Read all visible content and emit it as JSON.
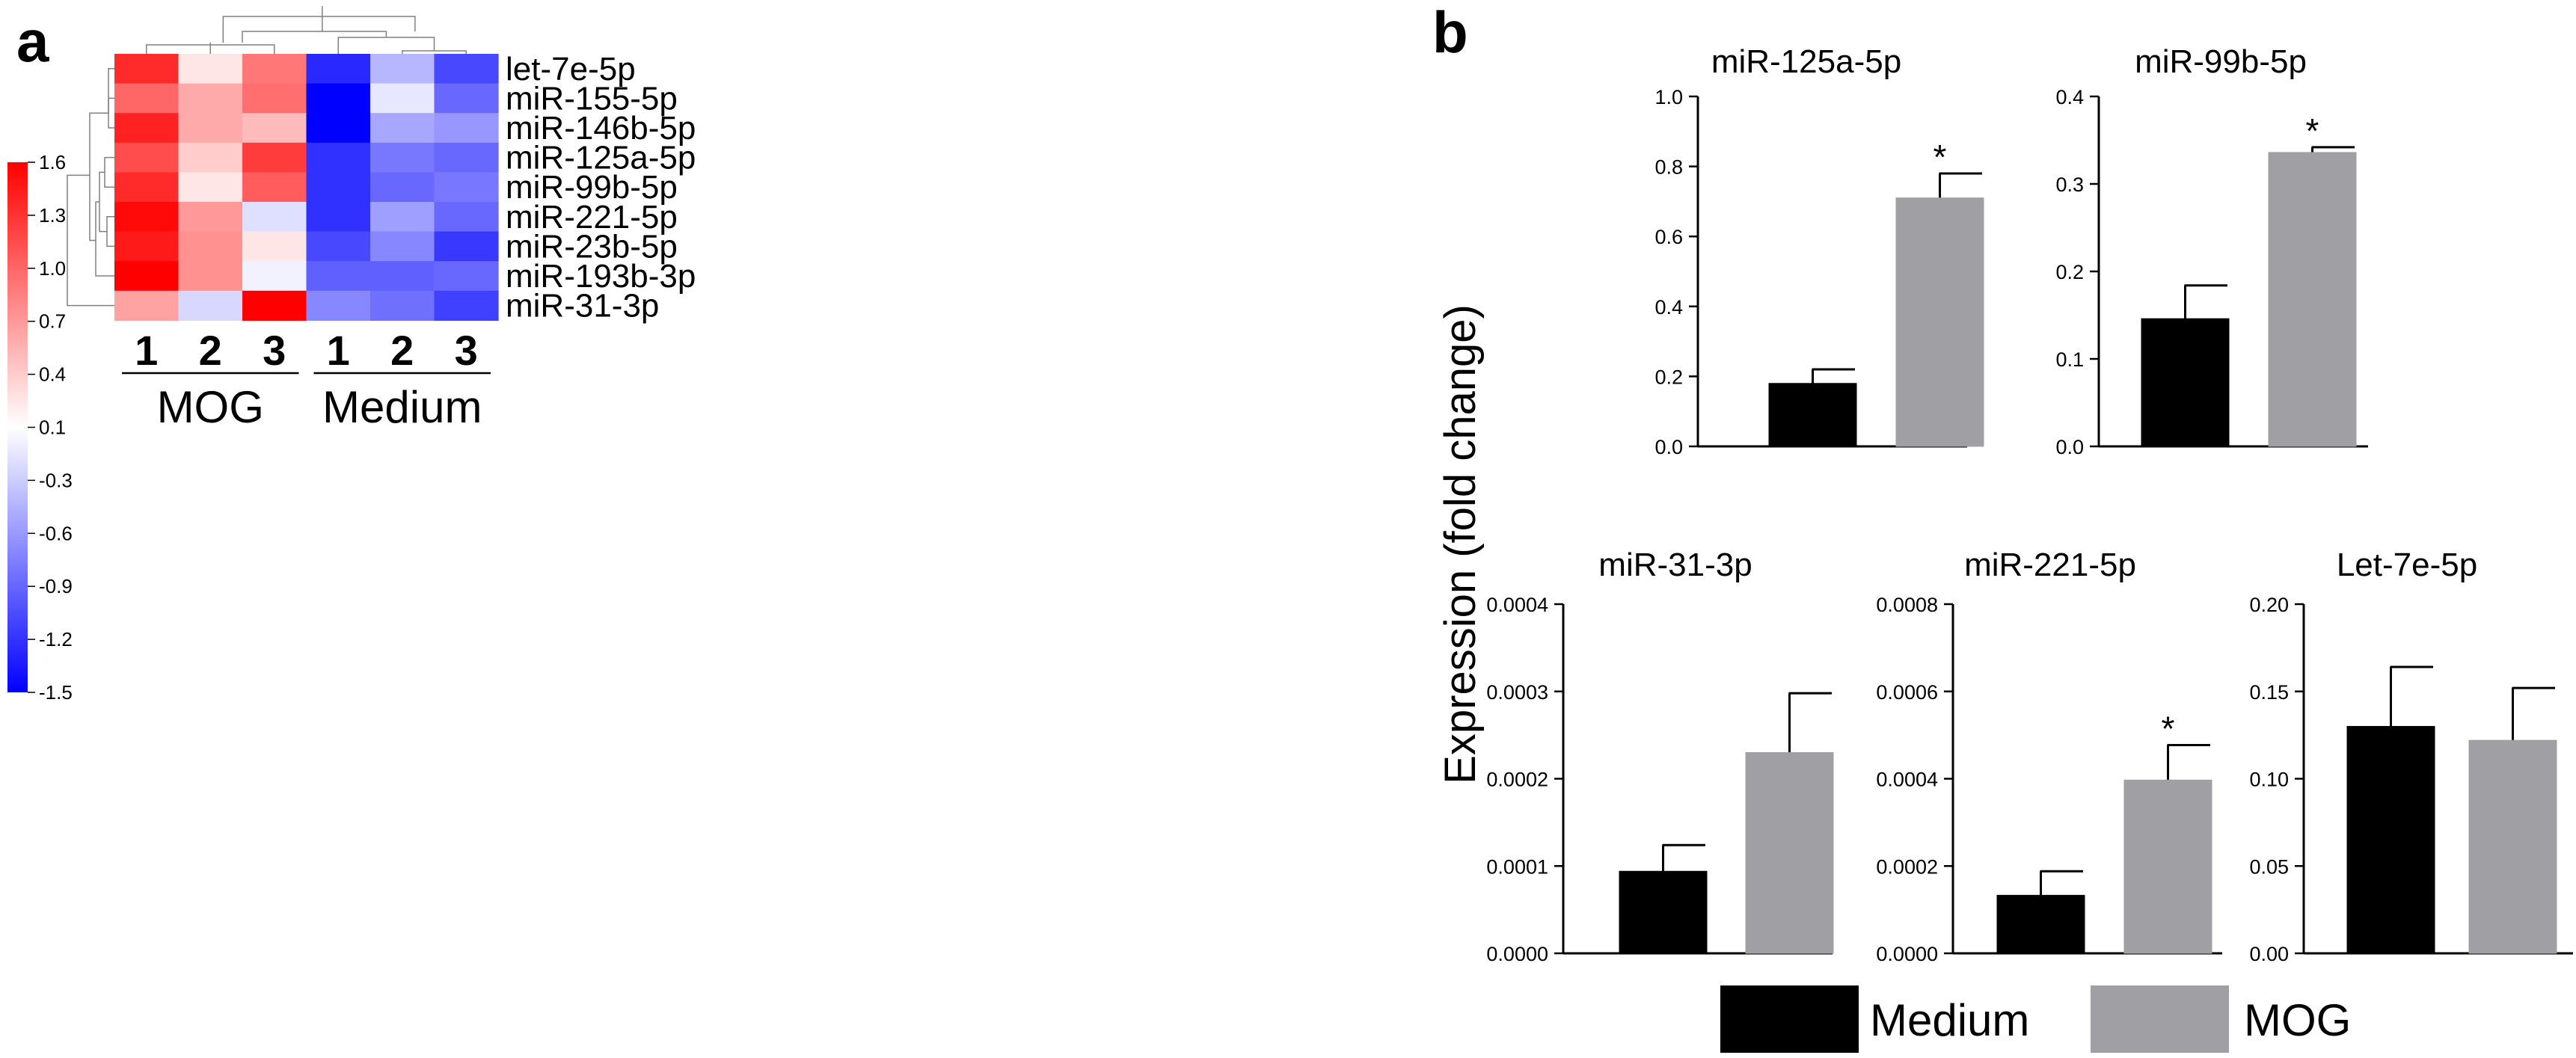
{
  "panels": {
    "a": "a",
    "b": "b"
  },
  "chart_data": [
    {
      "type": "heatmap",
      "panel": "a",
      "rows": [
        "let-7e-5p",
        "miR-155-5p",
        "miR-146b-5p",
        "miR-125a-5p",
        "miR-99b-5p",
        "miR-221-5p",
        "miR-23b-5p",
        "miR-193b-3p",
        "miR-31-3p"
      ],
      "columns": [
        "1",
        "2",
        "3",
        "1",
        "2",
        "3"
      ],
      "column_groups": [
        {
          "label": "MOG",
          "columns": [
            0,
            1,
            2
          ]
        },
        {
          "label": "Medium",
          "columns": [
            3,
            4,
            5
          ]
        }
      ],
      "values": [
        [
          1.35,
          0.25,
          0.9,
          -1.25,
          -0.35,
          -1.05
        ],
        [
          1.0,
          0.6,
          0.95,
          -1.5,
          -0.05,
          -0.85
        ],
        [
          1.4,
          0.6,
          0.5,
          -1.5,
          -0.45,
          -0.55
        ],
        [
          1.15,
          0.4,
          1.25,
          -1.2,
          -0.75,
          -0.85
        ],
        [
          1.35,
          0.25,
          1.05,
          -1.2,
          -0.85,
          -0.75
        ],
        [
          1.55,
          0.7,
          -0.1,
          -1.2,
          -0.5,
          -0.85
        ],
        [
          1.45,
          0.75,
          0.25,
          -1.05,
          -0.65,
          -1.15
        ],
        [
          1.6,
          0.75,
          0.02,
          -0.9,
          -0.9,
          -0.85
        ],
        [
          0.65,
          -0.15,
          1.6,
          -0.65,
          -0.8,
          -1.1
        ]
      ],
      "colorbar": {
        "min": -1.5,
        "max": 1.6,
        "ticks": [
          "1.6",
          "1.3",
          "1.0",
          "0.7",
          "0.4",
          "0.1",
          "-0.3",
          "-0.6",
          "-0.9",
          "-1.2",
          "-1.5"
        ],
        "colors": [
          "#0000ff",
          "#ffffff",
          "#ff0000"
        ]
      }
    },
    {
      "type": "bar",
      "panel": "b",
      "title": "miR-125a-5p",
      "categories": [
        "Medium",
        "MOG"
      ],
      "values": [
        0.18,
        0.71
      ],
      "errors": [
        0.04,
        0.07
      ],
      "significant": [
        false,
        true
      ],
      "ylim": [
        0,
        1.0
      ],
      "yticks": [
        "0.0",
        "0.2",
        "0.4",
        "0.6",
        "0.8",
        "1.0"
      ]
    },
    {
      "type": "bar",
      "panel": "b",
      "title": "miR-99b-5p",
      "categories": [
        "Medium",
        "MOG"
      ],
      "values": [
        0.146,
        0.336
      ],
      "errors": [
        0.038,
        0.006
      ],
      "significant": [
        false,
        true
      ],
      "ylim": [
        0,
        0.4
      ],
      "yticks": [
        "0.0",
        "0.1",
        "0.2",
        "0.3",
        "0.4"
      ]
    },
    {
      "type": "bar",
      "panel": "b",
      "title": "miR-31-3p",
      "categories": [
        "Medium",
        "MOG"
      ],
      "values": [
        9.4e-05,
        0.00023
      ],
      "errors": [
        3e-05,
        6.8e-05
      ],
      "significant": [
        false,
        false
      ],
      "ylim": [
        0,
        0.0004
      ],
      "yticks": [
        "0.0000",
        "0.0001",
        "0.0002",
        "0.0003",
        "0.0004"
      ]
    },
    {
      "type": "bar",
      "panel": "b",
      "title": "miR-221-5p",
      "categories": [
        "Medium",
        "MOG"
      ],
      "values": [
        0.000133,
        0.000397
      ],
      "errors": [
        5.5e-05,
        8e-05
      ],
      "significant": [
        false,
        true
      ],
      "ylim": [
        0,
        0.0008
      ],
      "yticks": [
        "0.0000",
        "0.0002",
        "0.0004",
        "0.0006",
        "0.0008"
      ]
    },
    {
      "type": "bar",
      "panel": "b",
      "title": "Let-7e-5p",
      "categories": [
        "Medium",
        "MOG"
      ],
      "values": [
        0.13,
        0.122
      ],
      "errors": [
        0.034,
        0.03
      ],
      "significant": [
        false,
        false
      ],
      "ylim": [
        0,
        0.2
      ],
      "yticks": [
        "0.00",
        "0.05",
        "0.10",
        "0.15",
        "0.20"
      ]
    }
  ],
  "bar_panel": {
    "ylabel": "Expression (fold change)",
    "significance_mark": "*",
    "legend": [
      {
        "label": "Medium",
        "color": "#000000"
      },
      {
        "label": "MOG",
        "color": "#a0a0a4"
      }
    ]
  }
}
